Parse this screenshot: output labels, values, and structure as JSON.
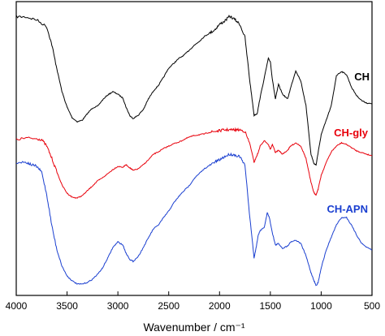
{
  "chart_data": {
    "type": "line",
    "xlabel": "Wavenumber / cm⁻¹",
    "ylabel": "",
    "title": "",
    "xlim": [
      4000,
      500
    ],
    "x_reversed": true,
    "y_axis_visible": false,
    "grid": false,
    "xticks": [
      4000,
      3500,
      3000,
      2500,
      2000,
      1500,
      1000,
      500
    ],
    "series": [
      {
        "name": "CH",
        "color": "#000000",
        "points": [
          [
            4000,
            20.5
          ],
          [
            3900,
            21.0
          ],
          [
            3800,
            24.5
          ],
          [
            3700,
            33.0
          ],
          [
            3650,
            55.0
          ],
          [
            3600,
            85.0
          ],
          [
            3550,
            113.0
          ],
          [
            3500,
            132.0
          ],
          [
            3450,
            145.0
          ],
          [
            3400,
            150.0
          ],
          [
            3350,
            148.0
          ],
          [
            3300,
            140.0
          ],
          [
            3250,
            133.0
          ],
          [
            3200,
            131.0
          ],
          [
            3150,
            123.0
          ],
          [
            3100,
            117.0
          ],
          [
            3050,
            113.0
          ],
          [
            3000,
            116.0
          ],
          [
            2950,
            121.0
          ],
          [
            2920,
            132.0
          ],
          [
            2880,
            143.0
          ],
          [
            2850,
            146.0
          ],
          [
            2800,
            142.0
          ],
          [
            2750,
            135.0
          ],
          [
            2700,
            122.0
          ],
          [
            2650,
            112.0
          ],
          [
            2600,
            105.0
          ],
          [
            2550,
            95.0
          ],
          [
            2500,
            84.0
          ],
          [
            2450,
            78.0
          ],
          [
            2400,
            72.0
          ],
          [
            2350,
            68.0
          ],
          [
            2300,
            62.0
          ],
          [
            2250,
            56.0
          ],
          [
            2200,
            51.0
          ],
          [
            2150,
            45.0
          ],
          [
            2100,
            41.0
          ],
          [
            2050,
            37.0
          ],
          [
            2000,
            30.0
          ],
          [
            1950,
            26.0
          ],
          [
            1900,
            20.0
          ],
          [
            1850,
            24.0
          ],
          [
            1800,
            30.0
          ],
          [
            1750,
            46.0
          ],
          [
            1700,
            102.0
          ],
          [
            1660,
            142.0
          ],
          [
            1630,
            140.0
          ],
          [
            1600,
            120.0
          ],
          [
            1550,
            90.0
          ],
          [
            1520,
            72.0
          ],
          [
            1500,
            76.0
          ],
          [
            1480,
            98.0
          ],
          [
            1450,
            122.0
          ],
          [
            1420,
            104.0
          ],
          [
            1380,
            116.0
          ],
          [
            1330,
            122.0
          ],
          [
            1300,
            108.0
          ],
          [
            1250,
            87.0
          ],
          [
            1200,
            100.0
          ],
          [
            1150,
            130.0
          ],
          [
            1100,
            190.0
          ],
          [
            1070,
            202.0
          ],
          [
            1050,
            203.0
          ],
          [
            1030,
            188.0
          ],
          [
            1000,
            166.0
          ],
          [
            950,
            148.0
          ],
          [
            900,
            130.0
          ],
          [
            850,
            93.0
          ],
          [
            800,
            88.0
          ],
          [
            750,
            92.0
          ],
          [
            700,
            108.0
          ],
          [
            650,
            118.0
          ],
          [
            600,
            124.0
          ],
          [
            550,
            127.0
          ],
          [
            500,
            128.0
          ]
        ]
      },
      {
        "name": "CH-gly",
        "color": "#e8000b",
        "points": [
          [
            4000,
            172.0
          ],
          [
            3900,
            170.0
          ],
          [
            3800,
            171.0
          ],
          [
            3750,
            172.0
          ],
          [
            3700,
            180.0
          ],
          [
            3650,
            195.0
          ],
          [
            3600,
            212.0
          ],
          [
            3550,
            228.0
          ],
          [
            3500,
            238.0
          ],
          [
            3450,
            243.0
          ],
          [
            3400,
            244.0
          ],
          [
            3350,
            241.0
          ],
          [
            3300,
            235.0
          ],
          [
            3250,
            229.0
          ],
          [
            3200,
            223.0
          ],
          [
            3150,
            219.0
          ],
          [
            3100,
            214.0
          ],
          [
            3050,
            209.0
          ],
          [
            3000,
            205.0
          ],
          [
            2950,
            206.0
          ],
          [
            2920,
            203.0
          ],
          [
            2880,
            207.0
          ],
          [
            2850,
            210.0
          ],
          [
            2800,
            208.0
          ],
          [
            2750,
            203.0
          ],
          [
            2700,
            197.0
          ],
          [
            2650,
            190.0
          ],
          [
            2600,
            187.0
          ],
          [
            2550,
            183.0
          ],
          [
            2500,
            180.0
          ],
          [
            2450,
            177.0
          ],
          [
            2400,
            175.0
          ],
          [
            2350,
            172.0
          ],
          [
            2300,
            169.0
          ],
          [
            2250,
            167.0
          ],
          [
            2200,
            166.0
          ],
          [
            2150,
            165.0
          ],
          [
            2100,
            163.0
          ],
          [
            2050,
            162.0
          ],
          [
            2000,
            161.0
          ],
          [
            1950,
            160.0
          ],
          [
            1900,
            160.0
          ],
          [
            1850,
            160.0
          ],
          [
            1800,
            160.0
          ],
          [
            1750,
            162.0
          ],
          [
            1700,
            178.0
          ],
          [
            1660,
            200.0
          ],
          [
            1640,
            194.0
          ],
          [
            1620,
            188.0
          ],
          [
            1600,
            180.0
          ],
          [
            1560,
            173.0
          ],
          [
            1520,
            178.0
          ],
          [
            1500,
            184.0
          ],
          [
            1480,
            178.0
          ],
          [
            1450,
            188.0
          ],
          [
            1420,
            185.0
          ],
          [
            1380,
            190.0
          ],
          [
            1330,
            185.0
          ],
          [
            1300,
            180.0
          ],
          [
            1250,
            176.0
          ],
          [
            1200,
            180.0
          ],
          [
            1150,
            195.0
          ],
          [
            1100,
            225.0
          ],
          [
            1070,
            238.0
          ],
          [
            1050,
            240.0
          ],
          [
            1030,
            233.0
          ],
          [
            1000,
            216.0
          ],
          [
            950,
            200.0
          ],
          [
            900,
            187.0
          ],
          [
            850,
            180.0
          ],
          [
            800,
            176.0
          ],
          [
            750,
            178.0
          ],
          [
            700,
            182.0
          ],
          [
            650,
            186.0
          ],
          [
            600,
            188.0
          ],
          [
            550,
            190.0
          ],
          [
            500,
            192.0
          ]
        ]
      },
      {
        "name": "CH-APN",
        "color": "#1a3fd0",
        "points": [
          [
            4000,
            200.0
          ],
          [
            3900,
            200.0
          ],
          [
            3850,
            203.0
          ],
          [
            3800,
            205.0
          ],
          [
            3750,
            212.0
          ],
          [
            3700,
            240.0
          ],
          [
            3650,
            278.0
          ],
          [
            3600,
            308.0
          ],
          [
            3550,
            328.0
          ],
          [
            3500,
            340.0
          ],
          [
            3450,
            346.0
          ],
          [
            3400,
            350.0
          ],
          [
            3350,
            350.0
          ],
          [
            3300,
            348.0
          ],
          [
            3250,
            344.0
          ],
          [
            3200,
            338.0
          ],
          [
            3150,
            330.0
          ],
          [
            3100,
            318.0
          ],
          [
            3050,
            305.0
          ],
          [
            3000,
            298.0
          ],
          [
            2950,
            302.0
          ],
          [
            2920,
            312.0
          ],
          [
            2880,
            320.0
          ],
          [
            2850,
            322.0
          ],
          [
            2800,
            316.0
          ],
          [
            2750,
            305.0
          ],
          [
            2700,
            293.0
          ],
          [
            2650,
            282.0
          ],
          [
            2600,
            277.0
          ],
          [
            2550,
            268.0
          ],
          [
            2500,
            260.0
          ],
          [
            2450,
            250.0
          ],
          [
            2400,
            242.0
          ],
          [
            2350,
            235.0
          ],
          [
            2300,
            229.0
          ],
          [
            2250,
            220.0
          ],
          [
            2200,
            214.0
          ],
          [
            2150,
            208.0
          ],
          [
            2100,
            204.0
          ],
          [
            2050,
            200.0
          ],
          [
            2000,
            197.0
          ],
          [
            1950,
            193.0
          ],
          [
            1900,
            190.0
          ],
          [
            1850,
            191.0
          ],
          [
            1800,
            193.0
          ],
          [
            1750,
            204.0
          ],
          [
            1700,
            270.0
          ],
          [
            1660,
            318.0
          ],
          [
            1640,
            305.0
          ],
          [
            1620,
            290.0
          ],
          [
            1600,
            284.0
          ],
          [
            1560,
            280.0
          ],
          [
            1530,
            262.0
          ],
          [
            1510,
            268.0
          ],
          [
            1480,
            287.0
          ],
          [
            1450,
            302.0
          ],
          [
            1420,
            300.0
          ],
          [
            1380,
            306.0
          ],
          [
            1330,
            303.0
          ],
          [
            1300,
            298.0
          ],
          [
            1250,
            296.0
          ],
          [
            1200,
            300.0
          ],
          [
            1150,
            315.0
          ],
          [
            1100,
            336.0
          ],
          [
            1070,
            346.0
          ],
          [
            1050,
            352.0
          ],
          [
            1030,
            348.0
          ],
          [
            1000,
            330.0
          ],
          [
            950,
            308.0
          ],
          [
            900,
            292.0
          ],
          [
            850,
            277.0
          ],
          [
            800,
            268.0
          ],
          [
            750,
            268.0
          ],
          [
            700,
            278.0
          ],
          [
            650,
            290.0
          ],
          [
            600,
            300.0
          ],
          [
            550,
            305.0
          ],
          [
            500,
            308.0
          ]
        ]
      }
    ]
  }
}
